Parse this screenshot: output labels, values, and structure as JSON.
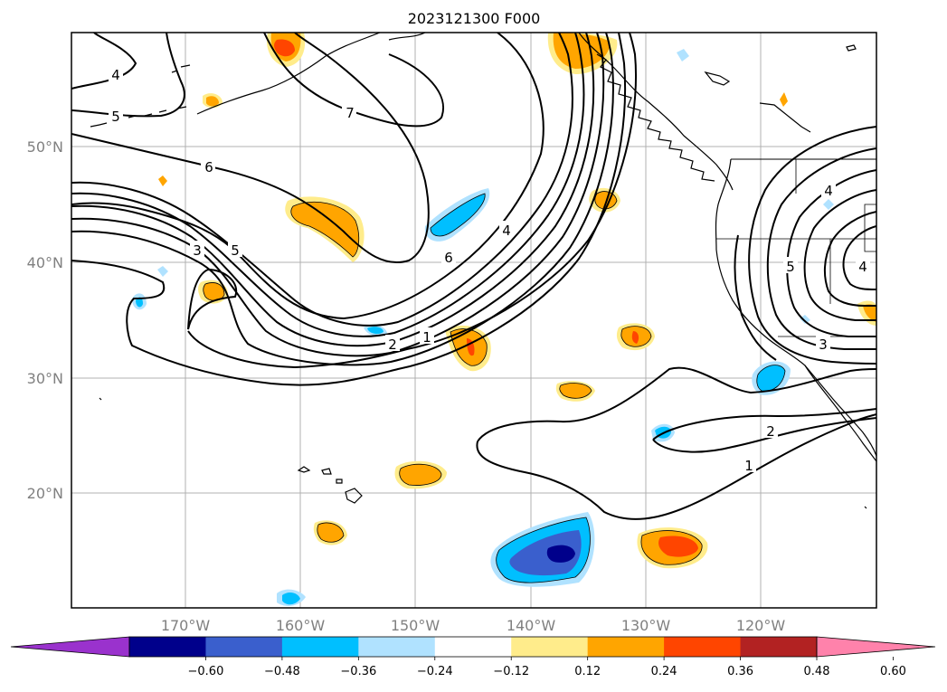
{
  "title": "2023121300 F000",
  "map": {
    "lat_labels": [
      "50°N",
      "40°N",
      "30°N",
      "20°N"
    ],
    "lon_labels": [
      "170°W",
      "160°W",
      "150°W",
      "140°W",
      "130°W",
      "120°W"
    ],
    "contour_labels": [
      "4",
      "5",
      "6",
      "7",
      "3",
      "5",
      "6",
      "4",
      "2",
      "1",
      "2",
      "1",
      "4",
      "5",
      "4",
      "3"
    ],
    "colors": {
      "contour": "#000000",
      "grid": "#b0b0b0",
      "coast": "#000000"
    }
  },
  "colorbar": {
    "ticks": [
      "−0.60",
      "−0.48",
      "−0.36",
      "−0.24",
      "−0.12",
      "0.12",
      "0.24",
      "0.36",
      "0.48",
      "0.60"
    ],
    "colors": [
      "#9a32cd",
      "#00008b",
      "#3a5fcd",
      "#00bfff",
      "#b0e2ff",
      "#ffffff",
      "#ffec8b",
      "#ffa500",
      "#ff4500",
      "#b22222",
      "#ff82ab"
    ]
  }
}
